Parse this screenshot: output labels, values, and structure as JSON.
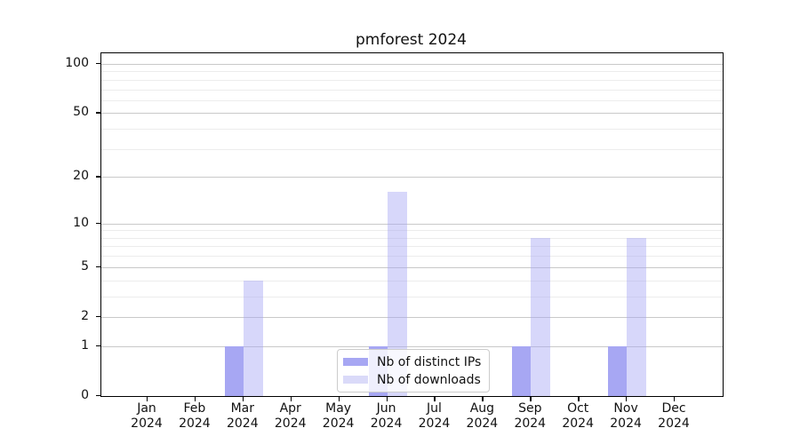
{
  "figure": {
    "title": "pmforest 2024",
    "background": "#ffffff"
  },
  "y_axis": {
    "tick_labels": [
      "100",
      "50",
      "20",
      "10",
      "5",
      "2",
      "1",
      "0"
    ],
    "tick_values": [
      100,
      50,
      20,
      10,
      5,
      2,
      1,
      0
    ]
  },
  "x_axis": {
    "labels": [
      {
        "month": "Jan",
        "year": "2024"
      },
      {
        "month": "Feb",
        "year": "2024"
      },
      {
        "month": "Mar",
        "year": "2024"
      },
      {
        "month": "Apr",
        "year": "2024"
      },
      {
        "month": "May",
        "year": "2024"
      },
      {
        "month": "Jun",
        "year": "2024"
      },
      {
        "month": "Jul",
        "year": "2024"
      },
      {
        "month": "Aug",
        "year": "2024"
      },
      {
        "month": "Sep",
        "year": "2024"
      },
      {
        "month": "Oct",
        "year": "2024"
      },
      {
        "month": "Nov",
        "year": "2024"
      },
      {
        "month": "Dec",
        "year": "2024"
      }
    ]
  },
  "legend": {
    "entries": [
      {
        "label": "Nb of distinct IPs",
        "color": "#a7a7f3"
      },
      {
        "label": "Nb of downloads",
        "color": "#dadaf9"
      }
    ]
  },
  "chart_data": {
    "type": "bar",
    "title": "pmforest 2024",
    "categories": [
      "Jan 2024",
      "Feb 2024",
      "Mar 2024",
      "Apr 2024",
      "May 2024",
      "Jun 2024",
      "Jul 2024",
      "Aug 2024",
      "Sep 2024",
      "Oct 2024",
      "Nov 2024",
      "Dec 2024"
    ],
    "series": [
      {
        "name": "Nb of distinct IPs",
        "color": "#a7a7f3",
        "values": [
          0,
          0,
          1,
          0,
          0,
          1,
          0,
          0,
          1,
          0,
          1,
          0
        ]
      },
      {
        "name": "Nb of downloads",
        "color": "#dadaf9",
        "values": [
          0,
          0,
          4,
          0,
          0,
          16,
          0,
          0,
          8,
          0,
          8,
          0
        ]
      }
    ],
    "y_scale": "log10(1+value)",
    "y_major_ticks": [
      0,
      1,
      2,
      5,
      10,
      20,
      50,
      100
    ],
    "y_minor_ticks": [
      3,
      4,
      6,
      7,
      8,
      9,
      30,
      40,
      60,
      70,
      80,
      90
    ],
    "ylim": [
      0,
      116
    ],
    "grid": "horizontal",
    "legend_position": "lower-center-inside"
  }
}
